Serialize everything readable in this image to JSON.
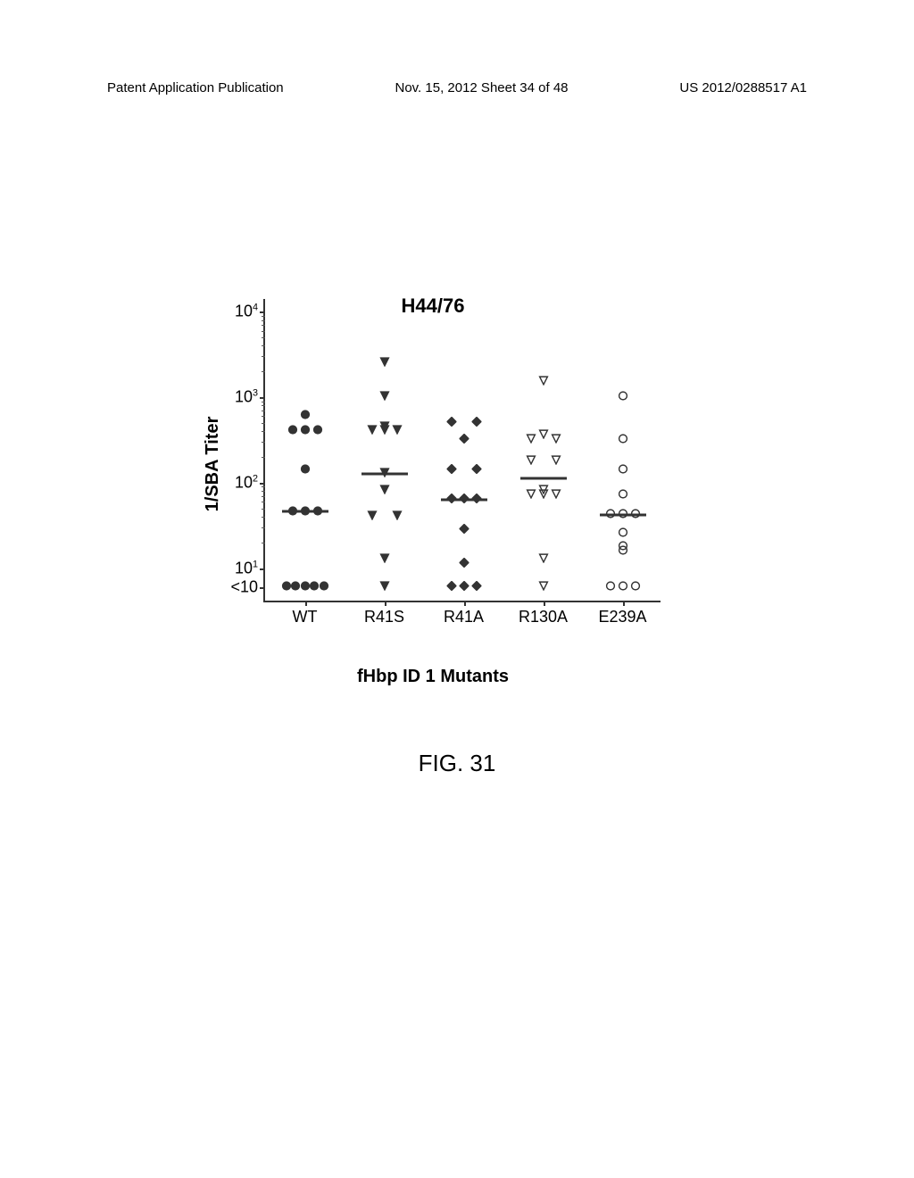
{
  "header": {
    "left": "Patent Application Publication",
    "center": "Nov. 15, 2012  Sheet 34 of 48",
    "right": "US 2012/0288517 A1"
  },
  "figureLabel": "FIG. 31",
  "chart": {
    "type": "scatter",
    "title": "H44/76",
    "ylabel": "1/SBA Titer",
    "xlabel": "fHbp ID 1 Mutants",
    "yTicks": [
      {
        "html": "10<sup>4</sup>",
        "log10": 4
      },
      {
        "html": "10<sup>3</sup>",
        "log10": 3
      },
      {
        "html": "10<sup>2</sup>",
        "log10": 2
      },
      {
        "html": "10<sup>1</sup>",
        "log10": 1
      },
      {
        "html": "<10",
        "log10": 0.78
      }
    ],
    "yRange": {
      "min": 0.6,
      "max": 4.15
    },
    "categories": [
      "WT",
      "R41S",
      "R41A",
      "R130A",
      "E239A"
    ],
    "categoryMarkers": [
      {
        "shape": "circle",
        "fill": "#333",
        "stroke": "#333"
      },
      {
        "shape": "triangle-down",
        "fill": "#333",
        "stroke": "#333"
      },
      {
        "shape": "diamond",
        "fill": "#333",
        "stroke": "#333"
      },
      {
        "shape": "triangle-down",
        "fill": "none",
        "stroke": "#333"
      },
      {
        "shape": "circle",
        "fill": "none",
        "stroke": "#333"
      }
    ],
    "markerSize": 11,
    "jitterSpread": 28,
    "medianLineWidth": 52,
    "medianLineColor": "#333",
    "series": [
      {
        "cat": 0,
        "median": 1.66,
        "values": [
          2.78,
          2.6,
          2.6,
          2.6,
          2.15,
          1.65,
          1.65,
          1.65,
          0.78,
          0.78,
          0.78,
          0.78,
          0.78
        ]
      },
      {
        "cat": 1,
        "median": 2.1,
        "values": [
          3.4,
          3.0,
          2.65,
          2.6,
          2.6,
          2.6,
          2.1,
          1.9,
          1.6,
          1.6,
          1.1,
          0.78
        ]
      },
      {
        "cat": 2,
        "median": 1.8,
        "values": [
          2.7,
          2.7,
          2.5,
          2.15,
          2.15,
          1.8,
          1.8,
          1.8,
          1.45,
          1.05,
          0.78,
          0.78,
          0.78
        ]
      },
      {
        "cat": 3,
        "median": 2.05,
        "values": [
          3.18,
          2.55,
          2.5,
          2.5,
          2.25,
          2.25,
          1.9,
          1.85,
          1.85,
          1.85,
          1.1,
          0.78
        ]
      },
      {
        "cat": 4,
        "median": 1.62,
        "values": [
          3.0,
          2.5,
          2.15,
          1.85,
          1.62,
          1.62,
          1.62,
          1.4,
          1.25,
          1.2,
          0.78,
          0.78,
          0.78
        ]
      }
    ],
    "colors": {
      "axis": "#333",
      "text": "#000",
      "background": "#ffffff"
    }
  }
}
